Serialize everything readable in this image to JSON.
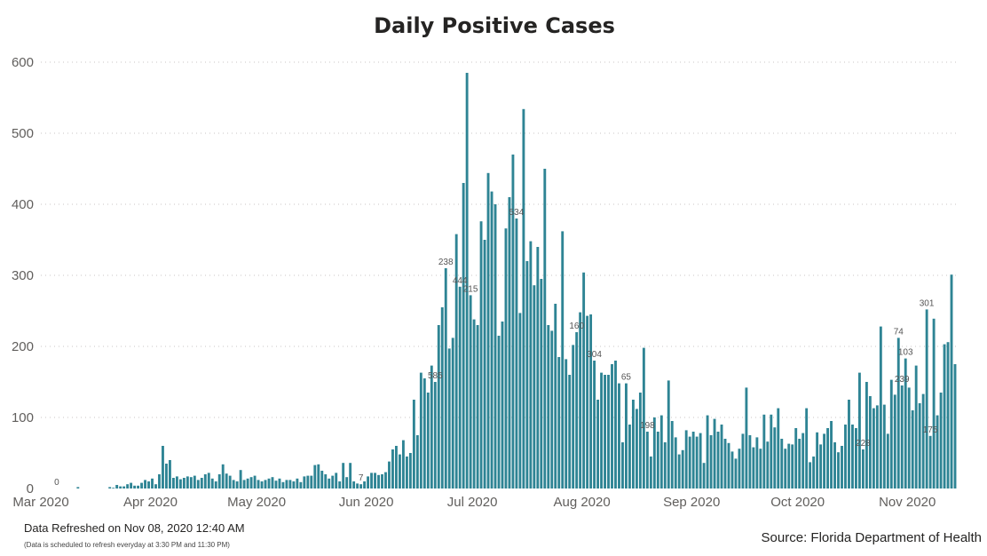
{
  "chart_data": {
    "type": "bar",
    "title": "Daily Positive Cases",
    "xlabel": "",
    "ylabel": "",
    "ylim": [
      0,
      600
    ],
    "yticks": [
      0,
      100,
      200,
      300,
      400,
      500,
      600
    ],
    "grid": true,
    "x_start": "2020-03-01",
    "x_end": "2020-11-07",
    "xtick_labels": [
      {
        "label": "Mar 2020",
        "date": "2020-03-01"
      },
      {
        "label": "Apr 2020",
        "date": "2020-04-01"
      },
      {
        "label": "May 2020",
        "date": "2020-05-01"
      },
      {
        "label": "Jun 2020",
        "date": "2020-06-01"
      },
      {
        "label": "Jul 2020",
        "date": "2020-07-01"
      },
      {
        "label": "Aug 2020",
        "date": "2020-08-01"
      },
      {
        "label": "Sep 2020",
        "date": "2020-09-01"
      },
      {
        "label": "Oct 2020",
        "date": "2020-10-01"
      },
      {
        "label": "Nov 2020",
        "date": "2020-11-01"
      }
    ],
    "color": "#2e8494",
    "values": [
      0,
      0,
      0,
      0,
      0,
      0,
      0,
      0,
      0,
      0,
      2,
      0,
      0,
      0,
      0,
      0,
      0,
      0,
      0,
      2,
      1,
      5,
      3,
      3,
      6,
      8,
      4,
      4,
      8,
      12,
      10,
      14,
      6,
      20,
      60,
      35,
      40,
      15,
      17,
      13,
      15,
      17,
      16,
      18,
      12,
      15,
      20,
      22,
      14,
      10,
      20,
      34,
      21,
      18,
      12,
      10,
      26,
      12,
      14,
      16,
      18,
      12,
      10,
      12,
      14,
      16,
      11,
      14,
      9,
      12,
      12,
      10,
      14,
      9,
      17,
      18,
      18,
      33,
      34,
      25,
      20,
      14,
      18,
      22,
      10,
      36,
      16,
      36,
      10,
      7,
      6,
      10,
      17,
      22,
      22,
      19,
      20,
      23,
      38,
      55,
      60,
      48,
      68,
      45,
      50,
      125,
      75,
      163,
      155,
      135,
      173,
      150,
      230,
      255,
      310,
      197,
      212,
      358,
      284,
      430,
      585,
      272,
      238,
      230,
      376,
      350,
      444,
      418,
      400,
      215,
      235,
      366,
      410,
      470,
      380,
      247,
      534,
      320,
      348,
      286,
      340,
      295,
      450,
      230,
      222,
      260,
      185,
      362,
      182,
      160,
      202,
      220,
      248,
      304,
      243,
      245,
      180,
      125,
      163,
      160,
      160,
      175,
      180,
      148,
      65,
      148,
      90,
      125,
      112,
      135,
      198,
      80,
      45,
      100,
      80,
      103,
      65,
      152,
      95,
      72,
      48,
      54,
      82,
      73,
      80,
      73,
      78,
      36,
      103,
      75,
      98,
      80,
      90,
      70,
      64,
      52,
      42,
      56,
      77,
      142,
      75,
      58,
      72,
      56,
      104,
      66,
      104,
      86,
      113,
      70,
      56,
      63,
      62,
      85,
      70,
      78,
      113,
      37,
      45,
      79,
      62,
      77,
      85,
      95,
      65,
      51,
      60,
      90,
      125,
      90,
      85,
      163,
      55,
      150,
      130,
      113,
      117,
      228,
      118,
      77,
      153,
      132,
      212,
      145,
      183,
      142,
      110,
      173,
      120,
      133,
      252,
      74,
      239,
      103,
      135,
      203,
      206,
      301,
      175
    ],
    "data_labels": [
      {
        "date": "2020-03-05",
        "label": "0"
      },
      {
        "date": "2020-05-30",
        "label": "7"
      },
      {
        "date": "2020-06-20",
        "label": "585"
      },
      {
        "date": "2020-06-23",
        "label": "238"
      },
      {
        "date": "2020-06-27",
        "label": "444"
      },
      {
        "date": "2020-06-30",
        "label": "215"
      },
      {
        "date": "2020-07-13",
        "label": "534"
      },
      {
        "date": "2020-07-30",
        "label": "160"
      },
      {
        "date": "2020-08-04",
        "label": "304"
      },
      {
        "date": "2020-08-13",
        "label": "65"
      },
      {
        "date": "2020-08-19",
        "label": "198"
      },
      {
        "date": "2020-10-19",
        "label": "228"
      },
      {
        "date": "2020-10-29",
        "label": "74"
      },
      {
        "date": "2020-10-30",
        "label": "239"
      },
      {
        "date": "2020-10-31",
        "label": "103"
      },
      {
        "date": "2020-11-06",
        "label": "301"
      },
      {
        "date": "2020-11-07",
        "label": "175"
      }
    ]
  },
  "footer": {
    "refreshed": "Data Refreshed on Nov 08, 2020 12:40 AM",
    "schedule": "(Data is scheduled to refresh everyday at 3:30 PM and 11:30 PM)",
    "source": "Source: Florida Department of Health"
  }
}
